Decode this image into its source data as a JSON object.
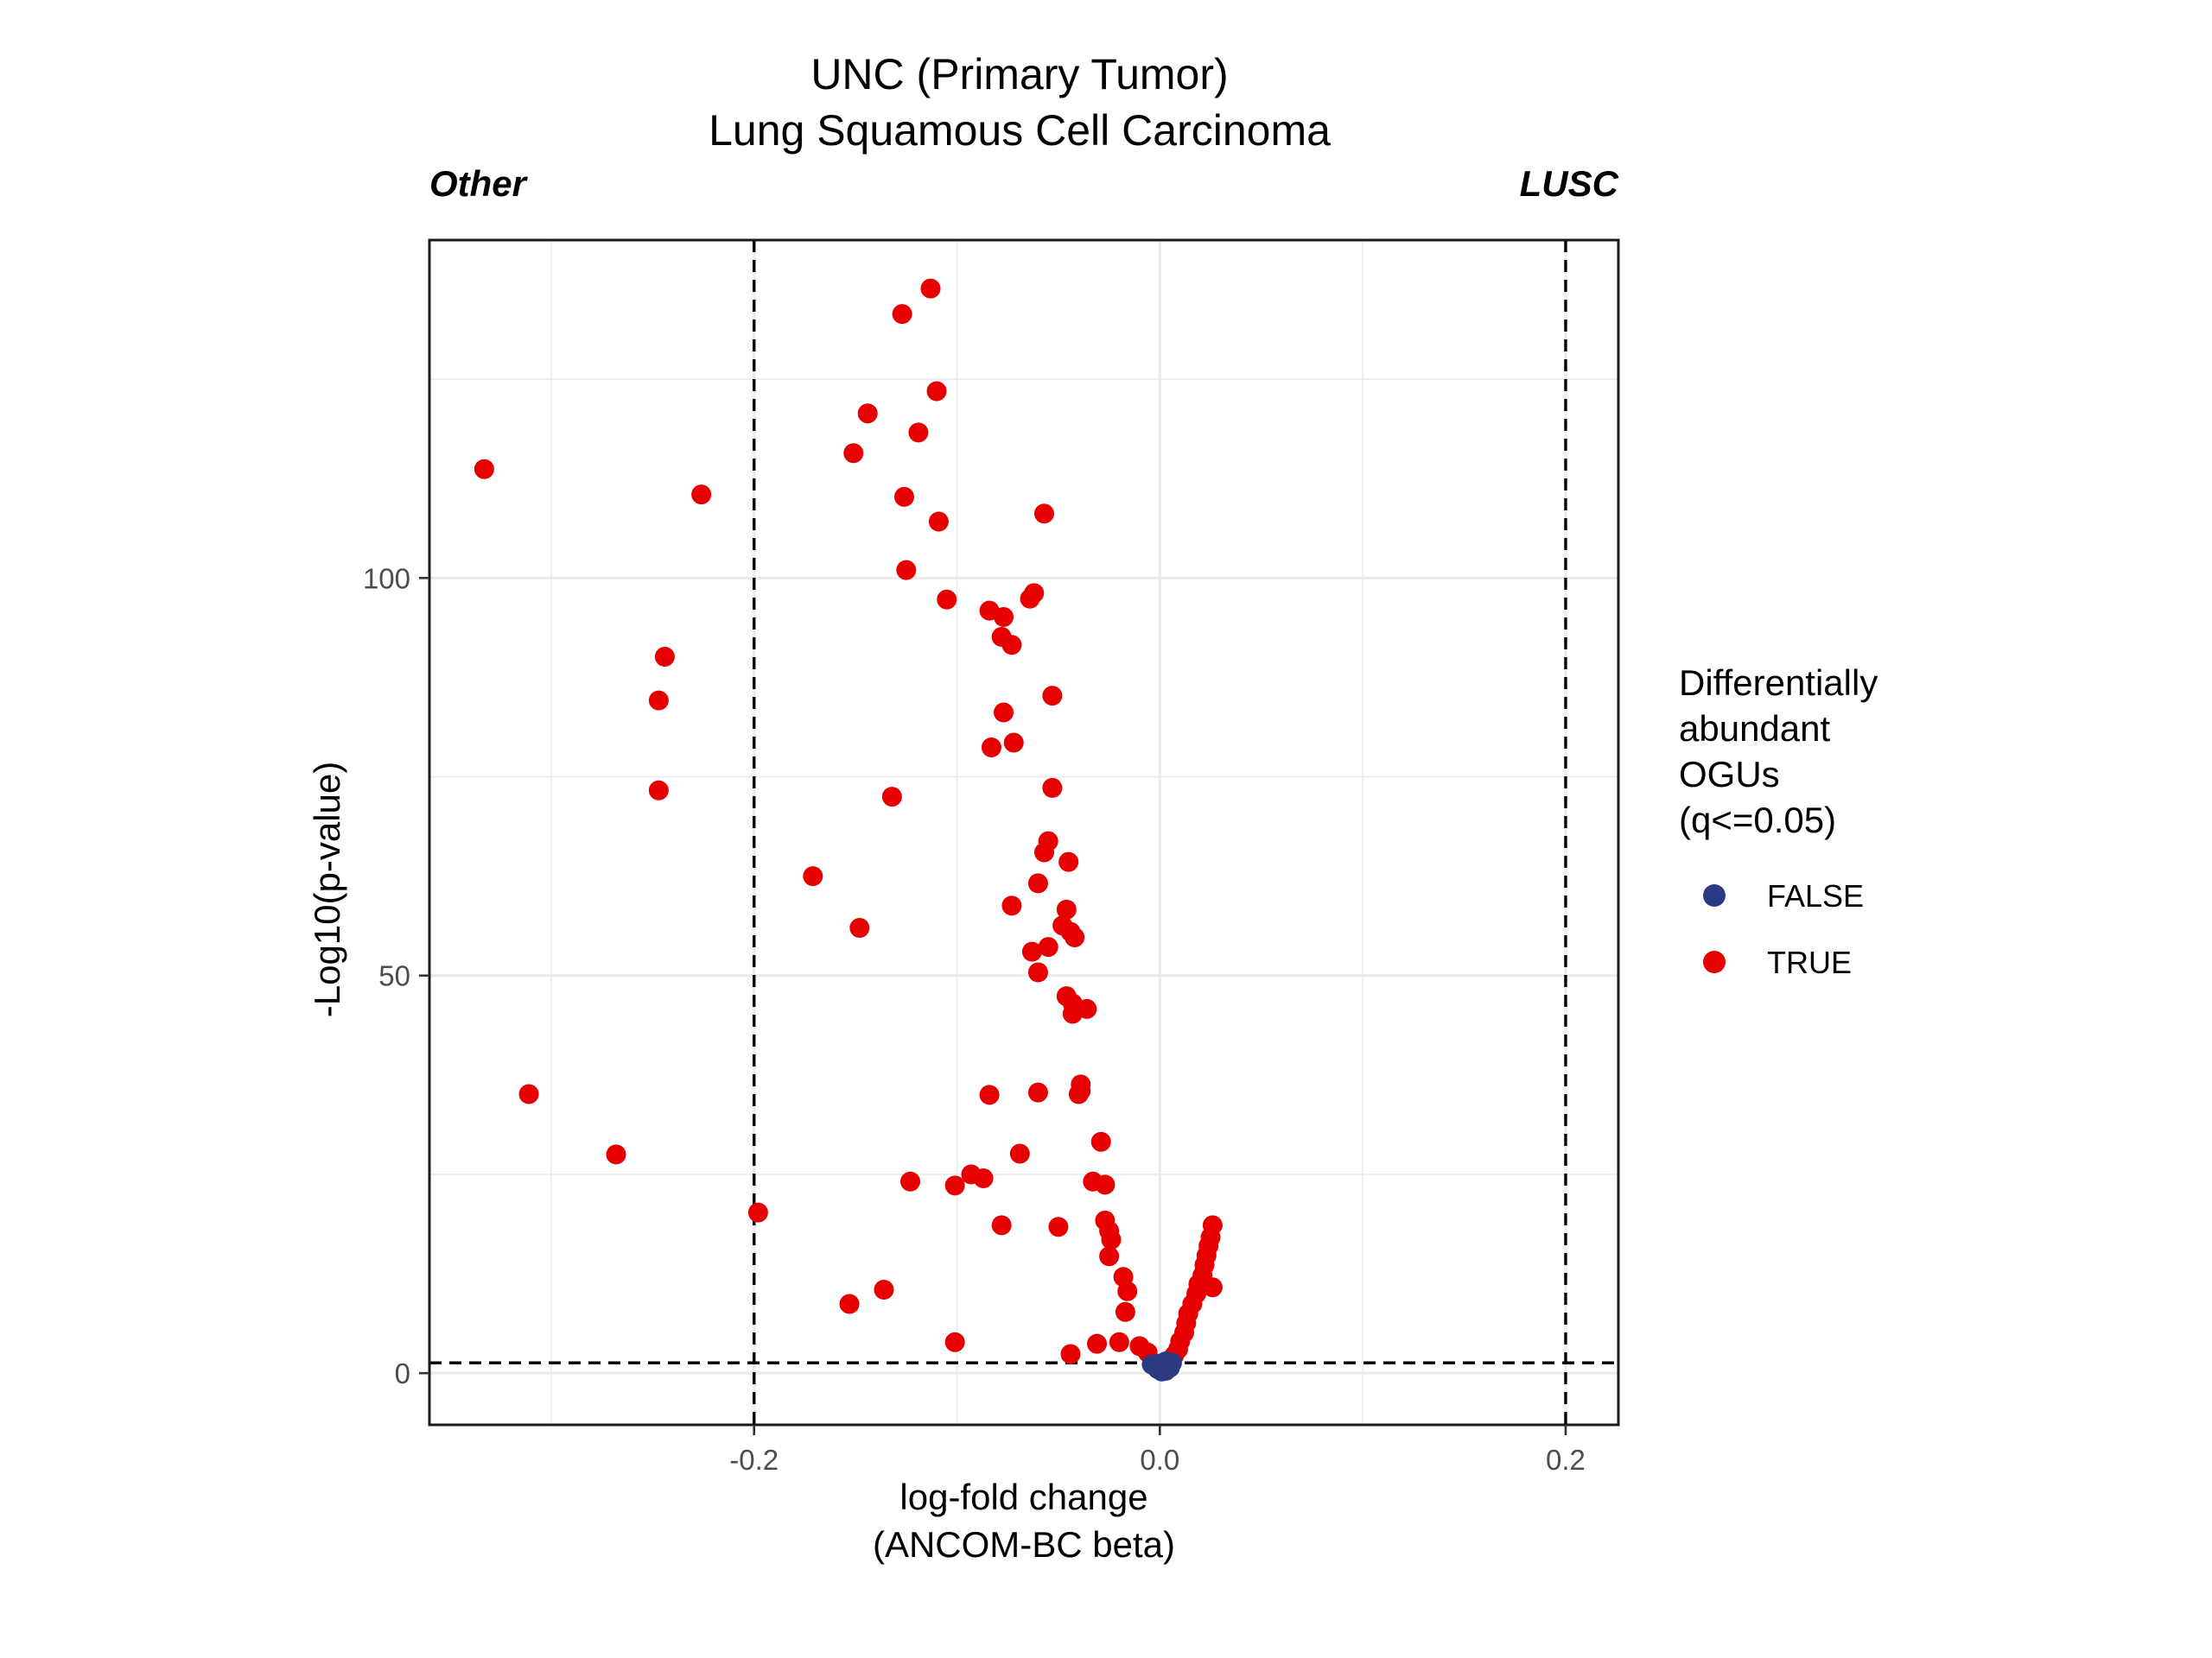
{
  "chart_data": {
    "type": "scatter",
    "title": "UNC (Primary Tumor)",
    "subtitle": "Lung Squamous Cell Carcinoma",
    "left_label": "Other",
    "right_label": "LUSC",
    "xlabel": [
      "log-fold change",
      "(ANCOM-BC beta)"
    ],
    "ylabel": "-Log10(p-value)",
    "xlim": [
      -0.36,
      0.226
    ],
    "ylim": [
      -6.5,
      142.5
    ],
    "xticks": [
      -0.2,
      0.0,
      0.2
    ],
    "xtick_labels": [
      "-0.2",
      "0.0",
      "0.2"
    ],
    "yticks": [
      0,
      50,
      100
    ],
    "ytick_labels": [
      "0",
      "50",
      "100"
    ],
    "grid": true,
    "reference_lines": {
      "vertical": [
        -0.2,
        0.2
      ],
      "horizontal": [
        1.3
      ]
    },
    "legend": {
      "title": [
        "Differentially",
        "abundant",
        "OGUs",
        "(q<=0.05)"
      ],
      "placement": "right",
      "entries": [
        {
          "label": "FALSE",
          "color": "#2b3a83"
        },
        {
          "label": "TRUE",
          "color": "#e60000"
        }
      ]
    },
    "series": [
      {
        "label": "TRUE",
        "color": "#e60000",
        "points": [
          [
            -0.113,
            136.4
          ],
          [
            -0.127,
            133.2
          ],
          [
            -0.11,
            123.5
          ],
          [
            -0.144,
            120.7
          ],
          [
            -0.119,
            118.3
          ],
          [
            -0.151,
            115.7
          ],
          [
            -0.333,
            113.7
          ],
          [
            -0.226,
            110.5
          ],
          [
            -0.126,
            110.2
          ],
          [
            -0.109,
            107.1
          ],
          [
            -0.057,
            108.1
          ],
          [
            -0.125,
            101
          ],
          [
            -0.105,
            97.3
          ],
          [
            -0.064,
            97.4
          ],
          [
            -0.062,
            98.1
          ],
          [
            -0.084,
            95.9
          ],
          [
            -0.077,
            95.1
          ],
          [
            -0.078,
            92.6
          ],
          [
            -0.073,
            91.6
          ],
          [
            -0.244,
            90.1
          ],
          [
            -0.247,
            84.6
          ],
          [
            -0.053,
            85.2
          ],
          [
            -0.077,
            83.1
          ],
          [
            -0.072,
            79.3
          ],
          [
            -0.083,
            78.7
          ],
          [
            -0.247,
            73.3
          ],
          [
            -0.132,
            72.5
          ],
          [
            -0.053,
            73.6
          ],
          [
            -0.055,
            66.9
          ],
          [
            -0.057,
            65.5
          ],
          [
            -0.045,
            64.3
          ],
          [
            -0.171,
            62.5
          ],
          [
            -0.06,
            61.6
          ],
          [
            -0.073,
            58.8
          ],
          [
            -0.046,
            58.3
          ],
          [
            -0.048,
            56.3
          ],
          [
            -0.044,
            55.5
          ],
          [
            -0.042,
            54.8
          ],
          [
            -0.148,
            56
          ],
          [
            -0.055,
            53.6
          ],
          [
            -0.063,
            53
          ],
          [
            -0.06,
            50.4
          ],
          [
            -0.046,
            47.4
          ],
          [
            -0.036,
            45.8
          ],
          [
            -0.043,
            46.5
          ],
          [
            -0.043,
            45.2
          ],
          [
            -0.039,
            36.3
          ],
          [
            -0.039,
            35.5
          ],
          [
            -0.04,
            35.1
          ],
          [
            -0.06,
            35.3
          ],
          [
            -0.084,
            35
          ],
          [
            -0.311,
            35.1
          ],
          [
            -0.268,
            27.5
          ],
          [
            -0.069,
            27.6
          ],
          [
            -0.029,
            29.1
          ],
          [
            -0.033,
            24.1
          ],
          [
            -0.027,
            23.7
          ],
          [
            -0.123,
            24.1
          ],
          [
            -0.101,
            23.6
          ],
          [
            -0.093,
            25
          ],
          [
            -0.087,
            24.5
          ],
          [
            -0.198,
            20.2
          ],
          [
            -0.078,
            18.6
          ],
          [
            -0.05,
            18.4
          ],
          [
            -0.027,
            19.2
          ],
          [
            -0.025,
            17.9
          ],
          [
            -0.024,
            16.8
          ],
          [
            -0.025,
            14.7
          ],
          [
            -0.018,
            12.1
          ],
          [
            -0.016,
            10.3
          ],
          [
            -0.017,
            7.7
          ],
          [
            -0.153,
            8.7
          ],
          [
            -0.136,
            10.5
          ],
          [
            -0.101,
            3.9
          ],
          [
            -0.044,
            2.4
          ],
          [
            -0.031,
            3.7
          ],
          [
            -0.02,
            3.9
          ],
          [
            -0.01,
            3.4
          ],
          [
            -0.006,
            2.6
          ],
          [
            0.026,
            18.6
          ],
          [
            0.025,
            17.1
          ],
          [
            0.024,
            16
          ],
          [
            0.023,
            14.8
          ],
          [
            0.022,
            13.6
          ],
          [
            0.021,
            12.3
          ],
          [
            0.019,
            11.2
          ],
          [
            0.018,
            10
          ],
          [
            0.016,
            8.7
          ],
          [
            0.014,
            7.5
          ],
          [
            0.013,
            6.3
          ],
          [
            0.012,
            5.1
          ],
          [
            0.01,
            4
          ],
          [
            0.009,
            3
          ],
          [
            0.007,
            2.2
          ],
          [
            0.026,
            10.8
          ]
        ]
      },
      {
        "label": "FALSE",
        "color": "#2b3a83",
        "points": [
          [
            0.0,
            0.4
          ],
          [
            0.002,
            0.6
          ],
          [
            -0.002,
            0.8
          ],
          [
            0.004,
            1.0
          ],
          [
            -0.004,
            1.1
          ],
          [
            0.006,
            1.3
          ],
          [
            0.001,
            0.2
          ],
          [
            0.003,
            0.3
          ],
          [
            -0.001,
            0.5
          ],
          [
            0.005,
            0.7
          ],
          [
            0.0,
            1.2
          ],
          [
            0.003,
            1.5
          ]
        ]
      }
    ]
  }
}
